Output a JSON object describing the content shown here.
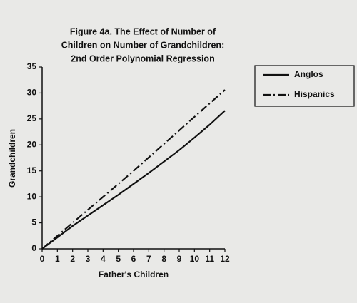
{
  "chart_data": {
    "type": "line",
    "title": [
      "Figure 4a. The Effect of Number of",
      "Children on Number of Grandchildren:",
      "2nd Order Polynomial Regression"
    ],
    "x_label": "Father's Children",
    "y_label": "Grandchildren",
    "x": [
      0,
      1,
      2,
      3,
      4,
      5,
      6,
      7,
      8,
      9,
      10,
      11,
      12
    ],
    "series": [
      {
        "name": "Anglos",
        "color": "#111111",
        "style": "solid",
        "values": [
          0,
          2.2,
          4.4,
          6.4,
          8.4,
          10.4,
          12.5,
          14.6,
          16.8,
          19.0,
          21.4,
          23.9,
          26.6
        ]
      },
      {
        "name": "Hispanics",
        "color": "#111111",
        "style": "dashdot",
        "values": [
          0,
          2.5,
          5.0,
          7.5,
          10.0,
          12.5,
          15.0,
          17.6,
          20.2,
          22.8,
          25.4,
          28.0,
          30.6
        ]
      }
    ],
    "xlim": [
      0,
      12
    ],
    "xticks": [
      0,
      1,
      2,
      3,
      4,
      5,
      6,
      7,
      8,
      9,
      10,
      11,
      12
    ],
    "ylim": [
      0,
      35
    ],
    "yticks": [
      0,
      5,
      10,
      15,
      20,
      25,
      30,
      35
    ],
    "legend": "outside-right-top",
    "grid": false
  }
}
